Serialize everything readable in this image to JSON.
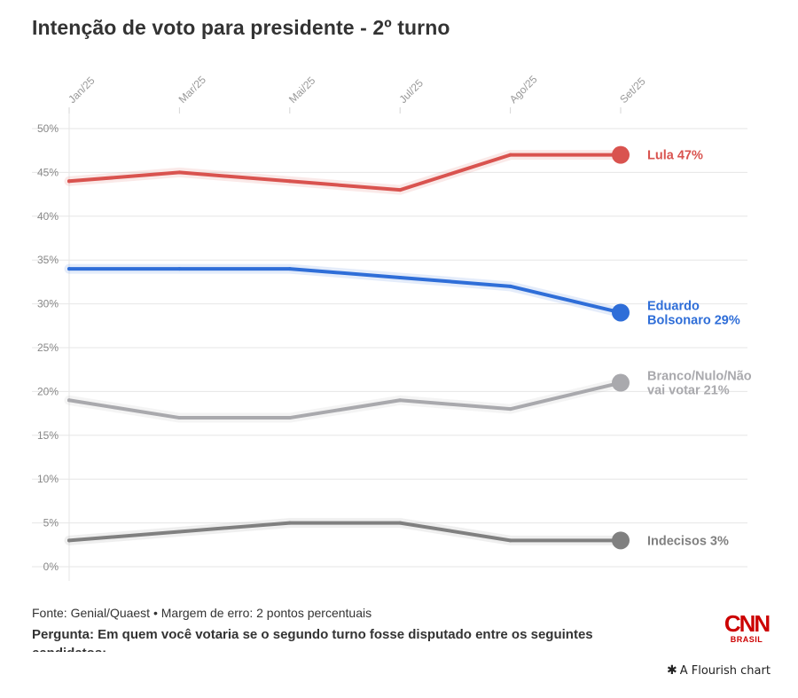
{
  "chart_data": {
    "type": "line",
    "title": "Intenção de voto para presidente - 2º turno",
    "xlabel": "",
    "ylabel": "",
    "x": [
      "Jan/25",
      "Mar/25",
      "Mai/25",
      "Jul/25",
      "Ago/25",
      "Set/25"
    ],
    "yticks": [
      "0%",
      "5%",
      "10%",
      "15%",
      "20%",
      "25%",
      "30%",
      "35%",
      "40%",
      "45%",
      "50%"
    ],
    "ylim": [
      0,
      50
    ],
    "grid": true,
    "series": [
      {
        "name": "Lula",
        "label_lines": [
          "Lula 47%"
        ],
        "color": "#d9534f",
        "values": [
          44,
          45,
          44,
          43,
          47,
          47
        ]
      },
      {
        "name": "Eduardo Bolsonaro",
        "label_lines": [
          "Eduardo",
          "Bolsonaro 29%"
        ],
        "color": "#2f6ed8",
        "values": [
          34,
          34,
          34,
          33,
          32,
          29
        ]
      },
      {
        "name": "Branco/Nulo/Não vai votar",
        "label_lines": [
          "Branco/Nulo/Não",
          "vai votar 21%"
        ],
        "color": "#a9a9ad",
        "values": [
          19,
          17,
          17,
          19,
          18,
          21
        ]
      },
      {
        "name": "Indecisos",
        "label_lines": [
          "Indecisos 3%"
        ],
        "color": "#808080",
        "values": [
          3,
          4,
          5,
          5,
          3,
          3
        ]
      }
    ]
  },
  "footer": {
    "source": "Fonte: Genial/Quaest • Margem de erro: 2 pontos percentuais",
    "question": "Pergunta: Em quem você votaria se o segundo turno fosse disputado entre os seguintes candidatos:"
  },
  "branding": {
    "logo_text": "CNN",
    "logo_subtitle": "BRASIL",
    "logo_color": "#cc0000",
    "credit": "A Flourish chart",
    "credit_icon": "flourish-star-icon"
  }
}
